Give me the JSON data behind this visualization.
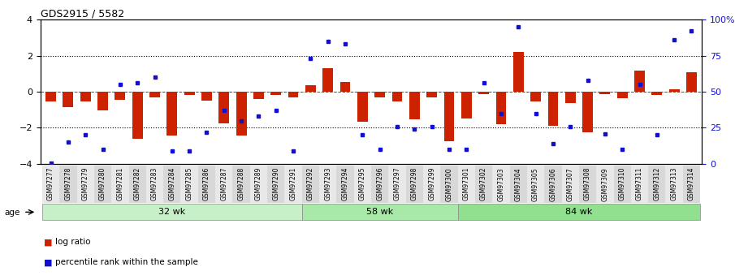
{
  "title": "GDS2915 / 5582",
  "samples": [
    "GSM97277",
    "GSM97278",
    "GSM97279",
    "GSM97280",
    "GSM97281",
    "GSM97282",
    "GSM97283",
    "GSM97284",
    "GSM97285",
    "GSM97286",
    "GSM97287",
    "GSM97288",
    "GSM97289",
    "GSM97290",
    "GSM97291",
    "GSM97292",
    "GSM97293",
    "GSM97294",
    "GSM97295",
    "GSM97296",
    "GSM97297",
    "GSM97298",
    "GSM97299",
    "GSM97300",
    "GSM97301",
    "GSM97302",
    "GSM97303",
    "GSM97304",
    "GSM97305",
    "GSM97306",
    "GSM97307",
    "GSM97308",
    "GSM97309",
    "GSM97310",
    "GSM97311",
    "GSM97312",
    "GSM97313",
    "GSM97314"
  ],
  "log_ratio": [
    -0.55,
    -0.85,
    -0.55,
    -1.05,
    -0.45,
    -2.6,
    -0.3,
    -2.45,
    -0.2,
    -0.5,
    -1.75,
    -2.45,
    -0.4,
    -0.2,
    -0.3,
    0.35,
    1.3,
    0.55,
    -1.65,
    -0.3,
    -0.55,
    -1.55,
    -0.3,
    -2.75,
    -1.5,
    -0.15,
    -1.8,
    2.2,
    -0.55,
    -1.9,
    -0.65,
    -2.25,
    -0.15,
    -0.35,
    1.15,
    -0.2,
    0.15,
    1.1
  ],
  "percentile": [
    0.5,
    15,
    20,
    10,
    55,
    56,
    60,
    9,
    9,
    22,
    37,
    30,
    33,
    37,
    9,
    73,
    85,
    83,
    20,
    10,
    26,
    24,
    26,
    10,
    10,
    56,
    35,
    95,
    35,
    14,
    26,
    58,
    21,
    10,
    55,
    20,
    86,
    92
  ],
  "groups": [
    {
      "label": "32 wk",
      "start": 0,
      "end": 14,
      "color": "#c8f0c8"
    },
    {
      "label": "58 wk",
      "start": 15,
      "end": 23,
      "color": "#a8e8a8"
    },
    {
      "label": "84 wk",
      "start": 24,
      "end": 37,
      "color": "#90e090"
    }
  ],
  "bar_color": "#cc2200",
  "dot_color": "#1111cc",
  "ylim_left": [
    -4,
    4
  ],
  "ylim_right": [
    0,
    100
  ],
  "yticks_left": [
    -4,
    -2,
    0,
    2,
    4
  ],
  "yticks_right": [
    0,
    25,
    50,
    75,
    100
  ],
  "ytick_labels_right": [
    "0",
    "25",
    "50",
    "75",
    "100%"
  ],
  "hlines_dotted": [
    2,
    -2
  ],
  "hline_red_dashed": 0,
  "bg_color": "#ffffff",
  "legend_items": [
    {
      "color": "#cc2200",
      "label": "log ratio"
    },
    {
      "color": "#1111cc",
      "label": "percentile rank within the sample"
    }
  ]
}
